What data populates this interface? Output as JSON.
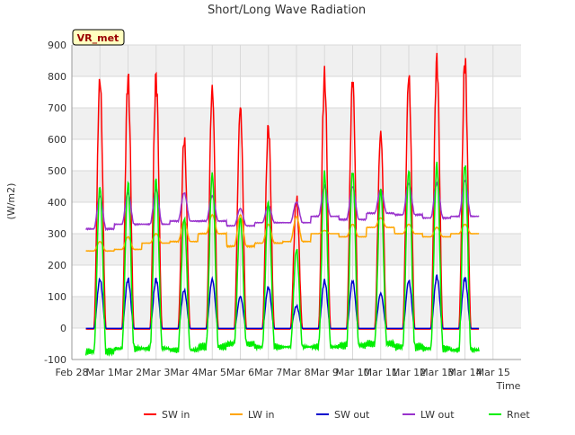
{
  "chart_data": {
    "type": "line",
    "title": "Short/Long Wave Radiation",
    "xlabel": "Time",
    "ylabel": "(W/m2)",
    "site_label": "VR_met",
    "ylim": [
      -100,
      900
    ],
    "xlim": [
      0,
      16
    ],
    "yticks": [
      -100,
      0,
      100,
      200,
      300,
      400,
      500,
      600,
      700,
      800,
      900
    ],
    "xtick_labels": [
      "Feb 28",
      "Mar 1",
      "Mar 2",
      "Mar 3",
      "Mar 4",
      "Mar 5",
      "Mar 6",
      "Mar 7",
      "Mar 8",
      "Mar 9",
      "Mar 10",
      "Mar 11",
      "Mar 12",
      "Mar 13",
      "Mar 14",
      "Mar 15"
    ],
    "xrange_data": [
      0.5,
      14.5
    ],
    "grid": true,
    "background_bands": true,
    "legend_position": "bottom",
    "days": [
      "Mar 1",
      "Mar 2",
      "Mar 3",
      "Mar 4",
      "Mar 5",
      "Mar 6",
      "Mar 7",
      "Mar 8",
      "Mar 9",
      "Mar 10",
      "Mar 11",
      "Mar 12",
      "Mar 13",
      "Mar 14"
    ],
    "series": [
      {
        "name": "SW in",
        "color": "#ff0000",
        "night_value": -3,
        "daily_peak": [
          790,
          795,
          795,
          600,
          760,
          700,
          640,
          410,
          800,
          790,
          620,
          800,
          850,
          850
        ]
      },
      {
        "name": "LW in",
        "color": "#ffa500",
        "daily_night": [
          245,
          250,
          270,
          275,
          300,
          260,
          270,
          275,
          300,
          290,
          320,
          300,
          290,
          300
        ],
        "daily_peak": [
          275,
          290,
          300,
          340,
          360,
          360,
          330,
          355,
          310,
          330,
          350,
          330,
          320,
          330
        ]
      },
      {
        "name": "SW out",
        "color": "#0000cd",
        "night_value": -1,
        "daily_peak": [
          155,
          155,
          155,
          120,
          155,
          100,
          130,
          70,
          150,
          150,
          110,
          150,
          165,
          160
        ]
      },
      {
        "name": "LW out",
        "color": "#9932cc",
        "daily_night": [
          315,
          330,
          330,
          340,
          340,
          325,
          335,
          335,
          355,
          345,
          365,
          360,
          350,
          355
        ],
        "daily_peak": [
          420,
          430,
          440,
          430,
          420,
          380,
          390,
          400,
          450,
          450,
          440,
          460,
          460,
          470
        ]
      },
      {
        "name": "Rnet",
        "color": "#00ee00",
        "daily_night": [
          -75,
          -65,
          -65,
          -70,
          -60,
          -50,
          -60,
          -60,
          -60,
          -55,
          -50,
          -60,
          -65,
          -70
        ],
        "daily_peak": [
          450,
          460,
          470,
          350,
          490,
          350,
          400,
          250,
          490,
          500,
          440,
          500,
          520,
          520
        ]
      }
    ]
  }
}
